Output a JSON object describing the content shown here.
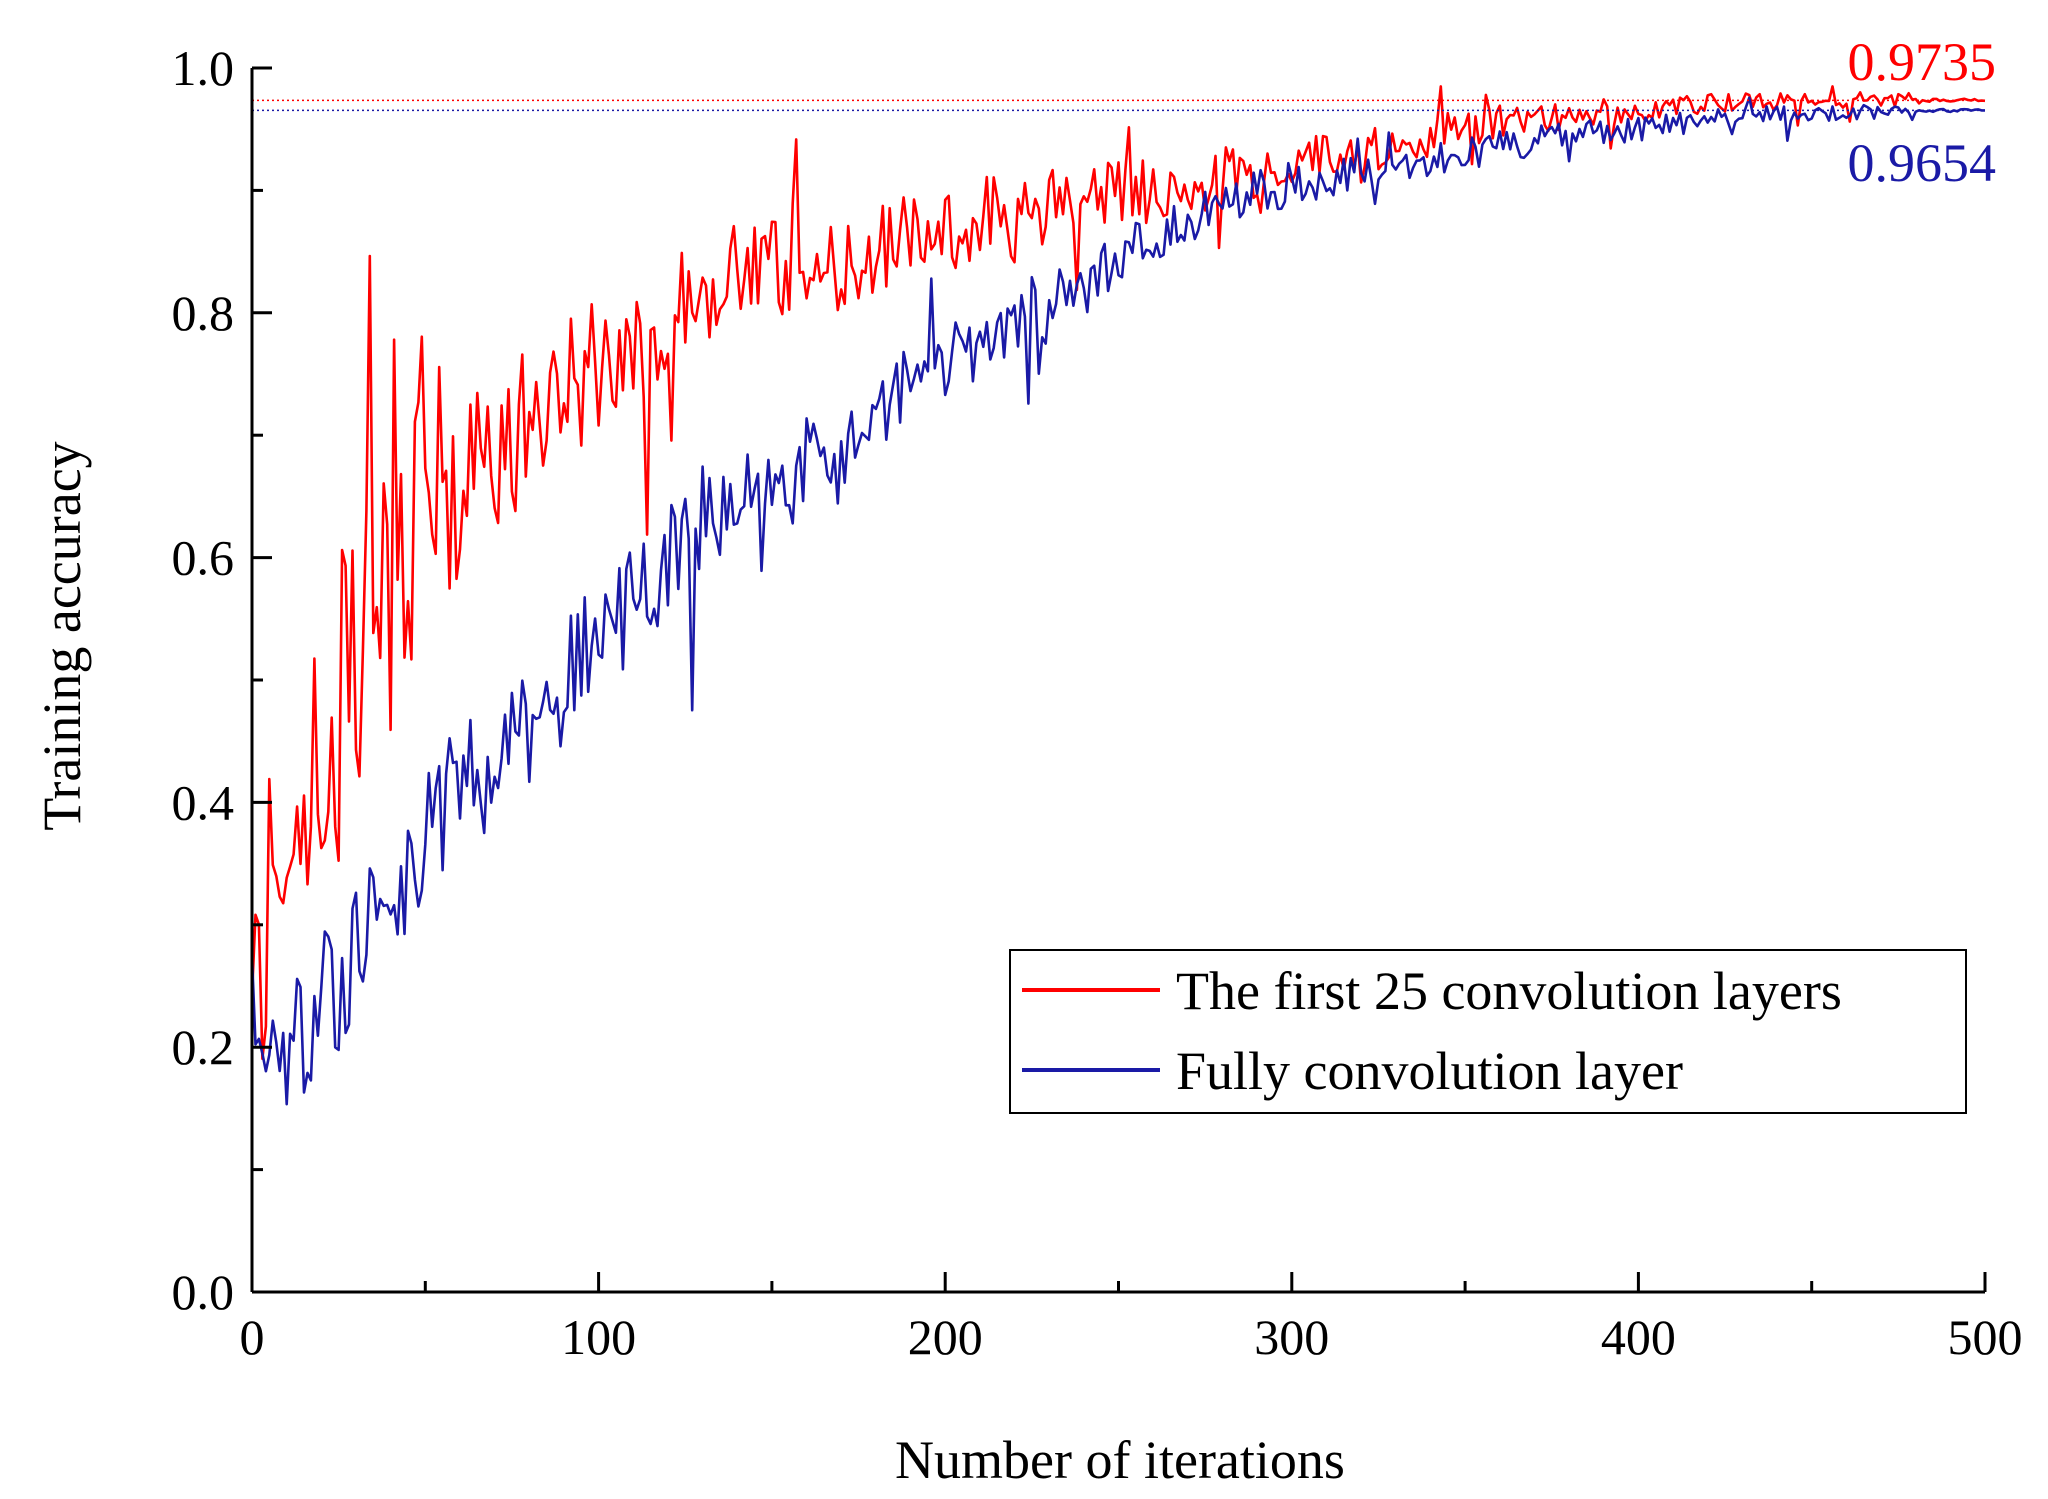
{
  "chart_data": {
    "type": "line",
    "xlabel": "Number of iterations",
    "ylabel": "Training accuracy",
    "xlim": [
      0,
      500
    ],
    "ylim": [
      0,
      1.0
    ],
    "xticks": [
      0,
      100,
      200,
      300,
      400,
      500
    ],
    "xtick_labels": [
      "0",
      "100",
      "200",
      "300",
      "400",
      "500"
    ],
    "yticks": [
      0,
      0.2,
      0.4,
      0.6,
      0.8,
      1.0
    ],
    "ytick_labels": [
      "0.0",
      "0.2",
      "0.4",
      "0.6",
      "0.8",
      "1.0"
    ],
    "grid": false,
    "legend_position": "bottom-right",
    "series": [
      {
        "name": "The first 25 convolution layers",
        "color": "#ff0000",
        "final_value": 0.9735,
        "final_label": "0.9735",
        "anchors": [
          [
            0,
            0.22
          ],
          [
            5,
            0.3
          ],
          [
            10,
            0.33
          ],
          [
            15,
            0.38
          ],
          [
            20,
            0.46
          ],
          [
            25,
            0.5
          ],
          [
            30,
            0.53
          ],
          [
            40,
            0.58
          ],
          [
            50,
            0.65
          ],
          [
            60,
            0.67
          ],
          [
            70,
            0.7
          ],
          [
            80,
            0.72
          ],
          [
            90,
            0.74
          ],
          [
            100,
            0.76
          ],
          [
            110,
            0.76
          ],
          [
            120,
            0.8
          ],
          [
            130,
            0.82
          ],
          [
            140,
            0.83
          ],
          [
            150,
            0.835
          ],
          [
            160,
            0.83
          ],
          [
            170,
            0.84
          ],
          [
            180,
            0.85
          ],
          [
            190,
            0.86
          ],
          [
            200,
            0.87
          ],
          [
            220,
            0.875
          ],
          [
            240,
            0.9
          ],
          [
            260,
            0.9
          ],
          [
            280,
            0.91
          ],
          [
            300,
            0.925
          ],
          [
            320,
            0.935
          ],
          [
            340,
            0.945
          ],
          [
            360,
            0.955
          ],
          [
            380,
            0.96
          ],
          [
            400,
            0.965
          ],
          [
            420,
            0.97
          ],
          [
            440,
            0.972
          ],
          [
            460,
            0.974
          ],
          [
            480,
            0.974
          ],
          [
            500,
            0.974
          ]
        ],
        "noise": [
          [
            0,
            0.1
          ],
          [
            40,
            0.12
          ],
          [
            80,
            0.07
          ],
          [
            120,
            0.045
          ],
          [
            200,
            0.035
          ],
          [
            300,
            0.022
          ],
          [
            400,
            0.01
          ],
          [
            500,
            0.005
          ]
        ]
      },
      {
        "name": "Fully convolution layer",
        "color": "#1a1aa6",
        "final_value": 0.9654,
        "final_label": "0.9654",
        "anchors": [
          [
            0,
            0.18
          ],
          [
            5,
            0.2
          ],
          [
            10,
            0.2
          ],
          [
            15,
            0.22
          ],
          [
            20,
            0.24
          ],
          [
            25,
            0.26
          ],
          [
            30,
            0.28
          ],
          [
            40,
            0.33
          ],
          [
            50,
            0.38
          ],
          [
            60,
            0.41
          ],
          [
            70,
            0.44
          ],
          [
            80,
            0.47
          ],
          [
            90,
            0.5
          ],
          [
            100,
            0.53
          ],
          [
            110,
            0.56
          ],
          [
            120,
            0.6
          ],
          [
            130,
            0.63
          ],
          [
            140,
            0.65
          ],
          [
            150,
            0.67
          ],
          [
            160,
            0.68
          ],
          [
            170,
            0.69
          ],
          [
            180,
            0.72
          ],
          [
            190,
            0.74
          ],
          [
            200,
            0.76
          ],
          [
            220,
            0.79
          ],
          [
            240,
            0.83
          ],
          [
            260,
            0.86
          ],
          [
            280,
            0.89
          ],
          [
            300,
            0.905
          ],
          [
            320,
            0.915
          ],
          [
            340,
            0.925
          ],
          [
            360,
            0.935
          ],
          [
            380,
            0.945
          ],
          [
            400,
            0.95
          ],
          [
            420,
            0.957
          ],
          [
            440,
            0.962
          ],
          [
            460,
            0.964
          ],
          [
            480,
            0.965
          ],
          [
            500,
            0.965
          ]
        ],
        "noise": [
          [
            0,
            0.06
          ],
          [
            50,
            0.06
          ],
          [
            110,
            0.05
          ],
          [
            200,
            0.03
          ],
          [
            300,
            0.018
          ],
          [
            400,
            0.01
          ],
          [
            500,
            0.004
          ]
        ]
      }
    ]
  }
}
